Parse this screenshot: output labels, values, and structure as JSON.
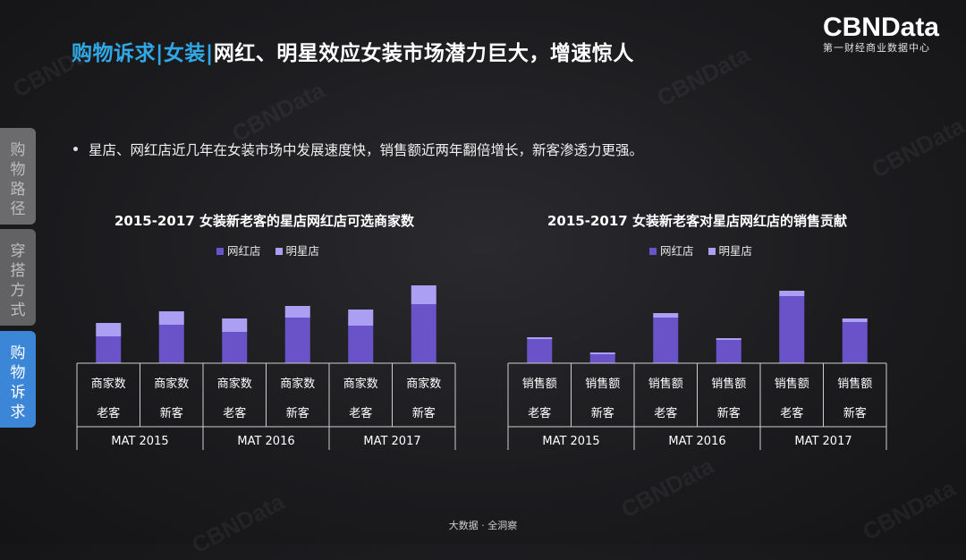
{
  "slide": {
    "title_highlight": "购物诉求|女装|",
    "title_rest": "网红、明星效应女装市场潜力巨大，增速惊人",
    "logo_brand": "CBNData",
    "logo_sub": "第一财经商业数据中心",
    "bullet": "星店、网红店近几年在女装市场中发展速度快，销售额近两年翻倍增长，新客渗透力更强。",
    "footer": "大数据 · 全洞察",
    "watermark": "CBNData"
  },
  "sidebar": {
    "items": [
      {
        "label": "购物路径",
        "active": false
      },
      {
        "label": "穿搭方式",
        "active": false
      },
      {
        "label": "购物诉求",
        "active": true
      }
    ]
  },
  "colors": {
    "wanghong": "#6a52c8",
    "mingxing": "#aa9ff2",
    "accent": "#31a8e6",
    "active_tab": "#3c86d8"
  },
  "chart_data": [
    {
      "type": "bar",
      "stacked": true,
      "title": "2015-2017 女装新老客的星店网红店可选商家数",
      "legend": [
        "网红店",
        "明星店"
      ],
      "legend_position": "top",
      "groups": [
        "MAT 2015",
        "MAT 2016",
        "MAT 2017"
      ],
      "row1_label": "商家数",
      "row2_labels": [
        "老客",
        "新客",
        "老客",
        "新客",
        "老客",
        "新客"
      ],
      "series": [
        {
          "name": "网红店",
          "values": [
            30,
            43,
            35,
            51,
            42,
            66
          ]
        },
        {
          "name": "明星店",
          "values": [
            15,
            15,
            15,
            13,
            18,
            21
          ]
        }
      ],
      "ylim": [
        0,
        100
      ],
      "axis_values_shown": false
    },
    {
      "type": "bar",
      "stacked": true,
      "title": "2015-2017 女装新老客对星店网红店的销售贡献",
      "legend": [
        "网红店",
        "明星店"
      ],
      "legend_position": "top",
      "groups": [
        "MAT 2015",
        "MAT 2016",
        "MAT 2017"
      ],
      "row1_label": "销售额",
      "row2_labels": [
        "老客",
        "新客",
        "老客",
        "新客",
        "老客",
        "新客"
      ],
      "series": [
        {
          "name": "网红店",
          "values": [
            27,
            10,
            51,
            26,
            75,
            46
          ]
        },
        {
          "name": "明星店",
          "values": [
            2,
            2,
            5,
            2,
            6,
            4
          ]
        }
      ],
      "ylim": [
        0,
        100
      ],
      "axis_values_shown": false
    }
  ]
}
